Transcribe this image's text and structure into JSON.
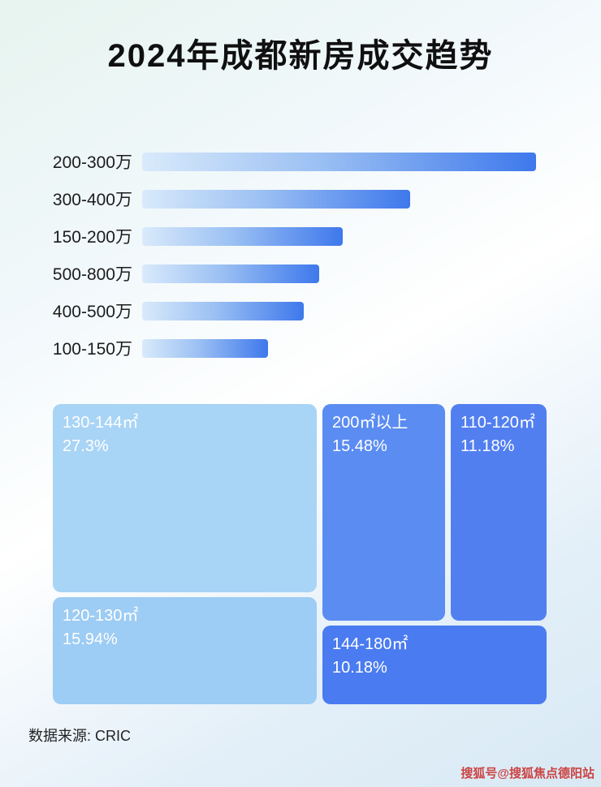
{
  "page": {
    "title": "2024年成都新房成交趋势",
    "source": "数据来源: CRIC",
    "watermark": "搜狐号@搜狐焦点德阳站"
  },
  "chart_data": [
    {
      "type": "bar",
      "title": "2024年成都新房成交趋势",
      "orientation": "horizontal",
      "categories": [
        "200-300万",
        "300-400万",
        "150-200万",
        "500-800万",
        "400-500万",
        "100-150万"
      ],
      "values_relative_pct": [
        100,
        68,
        51,
        45,
        41,
        32
      ],
      "xlabel": "",
      "ylabel": "",
      "grid": false,
      "legend": false
    },
    {
      "type": "treemap",
      "items": [
        {
          "label": "130-144㎡",
          "value_pct": 27.3,
          "value_label": "27.3%"
        },
        {
          "label": "200㎡以上",
          "value_pct": 15.48,
          "value_label": "15.48%"
        },
        {
          "label": "110-120㎡",
          "value_pct": 11.18,
          "value_label": "11.18%"
        },
        {
          "label": "120-130㎡",
          "value_pct": 15.94,
          "value_label": "15.94%"
        },
        {
          "label": "144-180㎡",
          "value_pct": 10.18,
          "value_label": "10.18%"
        }
      ]
    }
  ],
  "colors": {
    "bar_gradient_start": "#d9eafb",
    "bar_gradient_end": "#3e78ec",
    "treemap_130_144": "#a8d4f6",
    "treemap_120_130": "#9dccf4",
    "treemap_200_plus": "#5b8cf2",
    "treemap_110_120": "#527ff0",
    "treemap_144_180": "#4a7bf0",
    "watermark_red": "#cc4444"
  }
}
